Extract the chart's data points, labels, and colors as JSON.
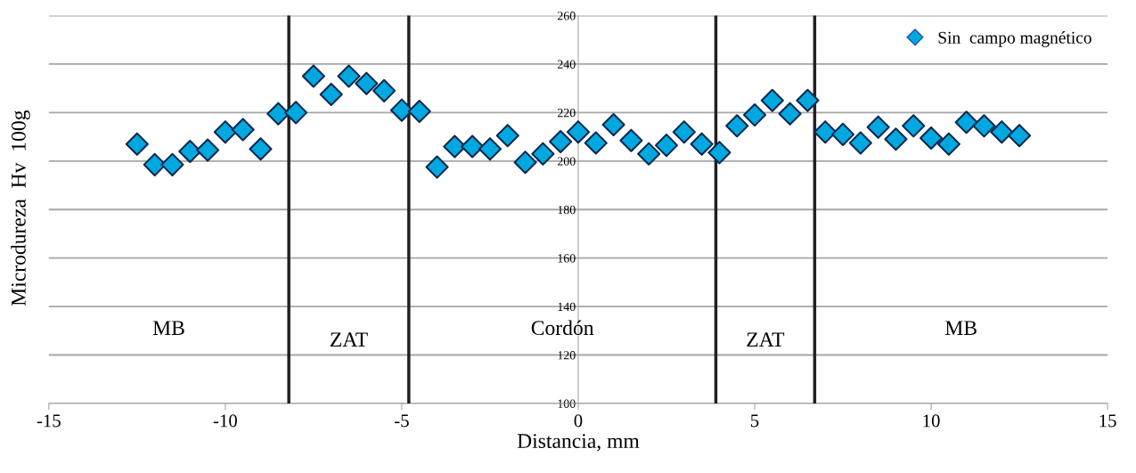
{
  "chart_data": {
    "type": "scatter",
    "xlabel": "Distancia, mm",
    "ylabel": "Microdureza  Hv  100g",
    "x": [
      -12.5,
      -12,
      -11.5,
      -11,
      -10.5,
      -10,
      -9.5,
      -9,
      -8.5,
      -8,
      -7.5,
      -7,
      -6.5,
      -6,
      -5.5,
      -5,
      -4.5,
      -4,
      -3.5,
      -3,
      -2.5,
      -2,
      -1.5,
      -1,
      -0.5,
      0,
      0.5,
      1,
      1.5,
      2,
      2.5,
      3,
      3.5,
      4,
      4.5,
      5,
      5.5,
      6,
      6.5,
      7,
      7.5,
      8,
      8.5,
      9,
      9.5,
      10,
      10.5,
      11,
      11.5,
      12,
      12.5
    ],
    "series": [
      {
        "name": "Sin  campo magnético",
        "color": "#00a8e0",
        "values": [
          207,
          198.5,
          198.5,
          204,
          204.5,
          212,
          213,
          205,
          219.5,
          220,
          235,
          227.5,
          235,
          232,
          229,
          221,
          220.5,
          197.5,
          206,
          206,
          205,
          210.5,
          199.5,
          203,
          208,
          212,
          207.5,
          215,
          208.5,
          203,
          206.5,
          212,
          207,
          203.5,
          214.5,
          219,
          225,
          219.5,
          225,
          212,
          211,
          207.5,
          214,
          209,
          214.5,
          209.5,
          207,
          216,
          214.5,
          212,
          210.5
        ]
      }
    ],
    "xlim": [
      -15,
      15
    ],
    "xticks": [
      -15,
      -10,
      -5,
      0,
      5,
      10,
      15
    ],
    "ylim": [
      100,
      260
    ],
    "yticks": [
      100,
      120,
      140,
      160,
      180,
      200,
      220,
      240,
      260
    ],
    "grid": "y",
    "legend": "top right",
    "marker": "diamond",
    "ref_lines": [
      {
        "axis": "x",
        "value": -8.2,
        "color": "#231f20"
      },
      {
        "axis": "x",
        "value": -4.8,
        "color": "#231f20"
      },
      {
        "axis": "x",
        "value": 3.9,
        "color": "#231f20"
      },
      {
        "axis": "x",
        "value": 6.7,
        "color": "#231f20"
      }
    ],
    "annotations": [
      "MB",
      "ZAT",
      "Cordón",
      "ZAT",
      "MB"
    ]
  }
}
